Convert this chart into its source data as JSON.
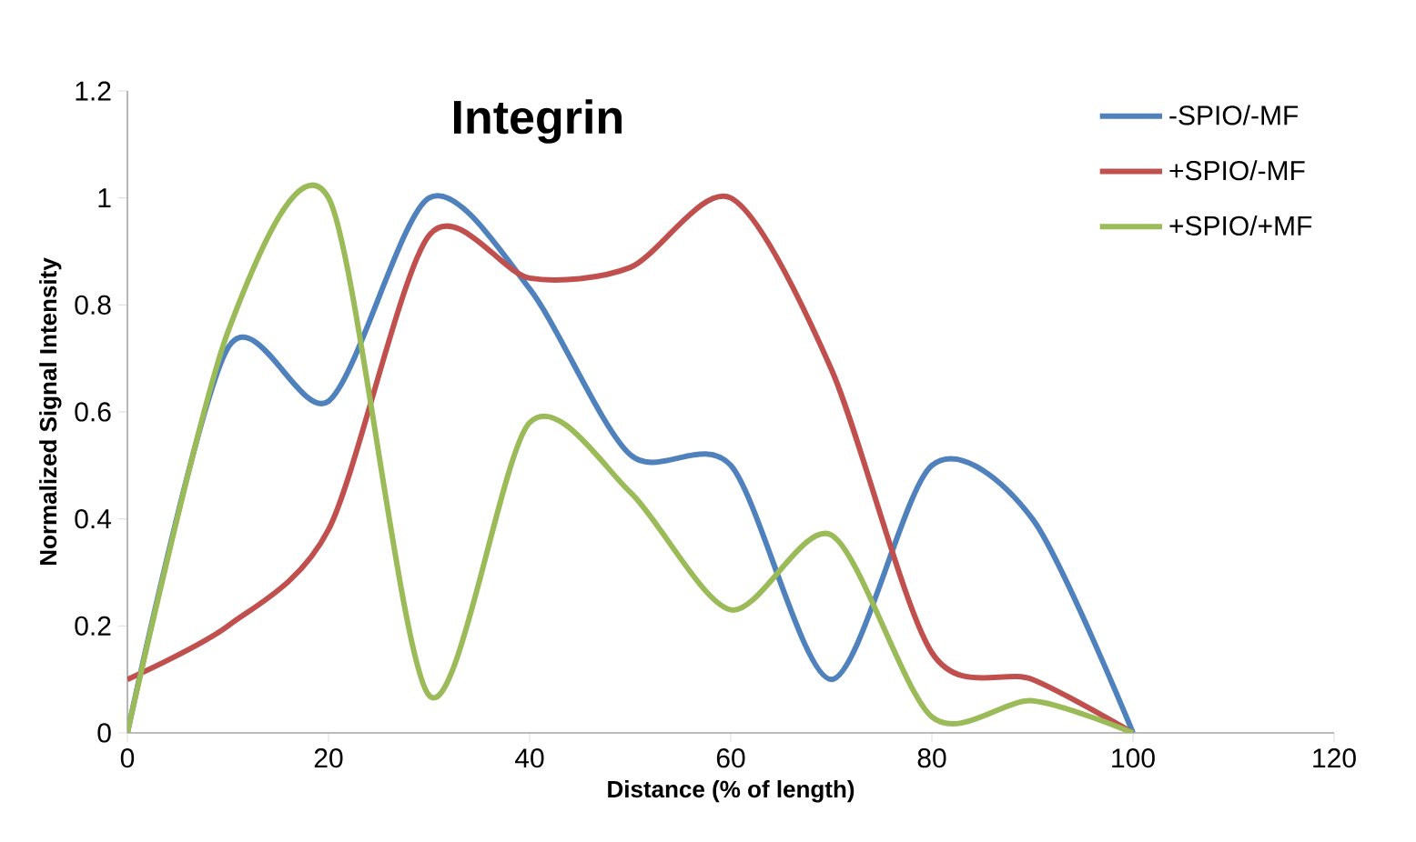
{
  "chart_data": {
    "type": "line",
    "title": "Integrin",
    "xlabel": "Distance (% of length)",
    "ylabel": "Normalized Signal Intensity",
    "x": [
      0,
      10,
      20,
      30,
      40,
      50,
      60,
      70,
      80,
      90,
      100
    ],
    "series": [
      {
        "name": "-SPIO/-MF",
        "color": "#4f81bd",
        "values": [
          0,
          0.72,
          0.62,
          1.0,
          0.83,
          0.52,
          0.5,
          0.1,
          0.5,
          0.4,
          0
        ]
      },
      {
        "name": "+SPIO/-MF",
        "color": "#c0504d",
        "values": [
          0.1,
          0.2,
          0.38,
          0.93,
          0.85,
          0.87,
          1.0,
          0.68,
          0.15,
          0.1,
          0
        ]
      },
      {
        "name": "+SPIO/+MF",
        "color": "#9bbb59",
        "values": [
          0,
          0.75,
          1.0,
          0.07,
          0.58,
          0.45,
          0.23,
          0.37,
          0.03,
          0.06,
          0
        ]
      }
    ],
    "xlim": [
      0,
      120
    ],
    "xticks": [
      0,
      20,
      40,
      60,
      80,
      100,
      120
    ],
    "ylim": [
      0,
      1.2
    ],
    "yticks": [
      0,
      0.2,
      0.4,
      0.6,
      0.8,
      1,
      1.2
    ],
    "grid": false,
    "legend": "top right",
    "marker": "none",
    "line_style": "solid"
  }
}
